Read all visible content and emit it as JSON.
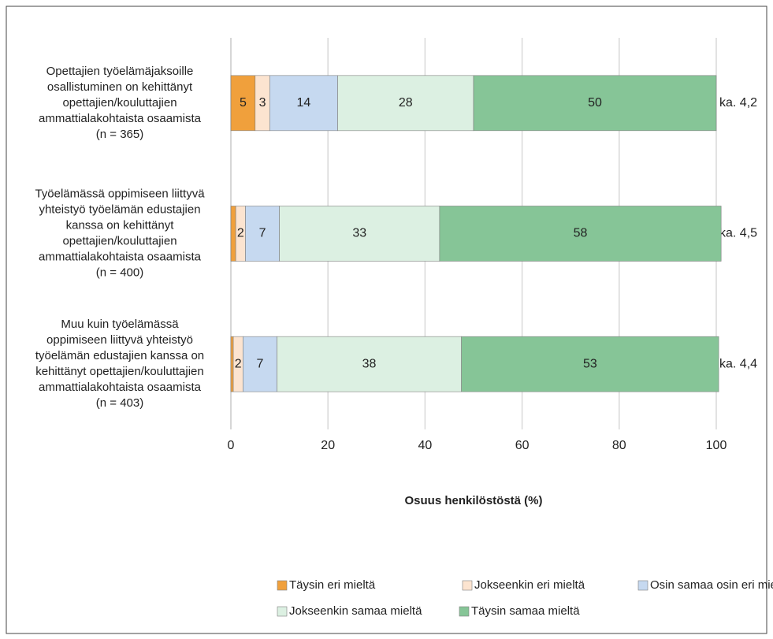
{
  "chart_data": {
    "type": "stacked-barh",
    "categories": [
      [
        "Opettajien työelämäjaksoille",
        "osallistuminen on kehittänyt",
        "opettajien/kouluttajien",
        "ammattialakohtaista osaamista",
        "(n = 365)"
      ],
      [
        "Työelämässä oppimiseen liittyvä",
        "yhteistyö työelämän edustajien",
        "kanssa on kehittänyt",
        "opettajien/kouluttajien",
        "ammattialakohtaista osaamista",
        "(n = 400)"
      ],
      [
        "Muu kuin työelämässä",
        "oppimiseen liittyvä yhteistyö",
        "työelämän edustajien kanssa on",
        "kehittänyt opettajien/kouluttajien",
        "ammattialakohtaista osaamista",
        "(n = 403)"
      ]
    ],
    "annotations": [
      "ka. 4,2",
      "ka. 4,5",
      "ka. 4,4"
    ],
    "series": [
      {
        "name": "Täysin eri mieltä",
        "color": "#f0a03c",
        "values": [
          5,
          1,
          0.5
        ],
        "value_labels": [
          "5",
          null,
          null
        ]
      },
      {
        "name": "Jokseenkin eri mieltä",
        "color": "#fce4d0",
        "values": [
          3,
          2,
          2
        ]
      },
      {
        "name": "Osin samaa osin eri mieltä",
        "color": "#c6d9f0",
        "values": [
          14,
          7,
          7
        ]
      },
      {
        "name": "Jokseenkin samaa mieltä",
        "color": "#dcf0e2",
        "values": [
          28,
          33,
          38
        ]
      },
      {
        "name": "Täysin samaa mieltä",
        "color": "#86c597",
        "values": [
          50,
          58,
          53
        ]
      }
    ],
    "xlabel": "Osuus henkilöstöstä (%)",
    "xlim": [
      0,
      100
    ],
    "xticks": [
      0,
      20,
      40,
      60,
      80,
      100
    ],
    "grid": true
  }
}
